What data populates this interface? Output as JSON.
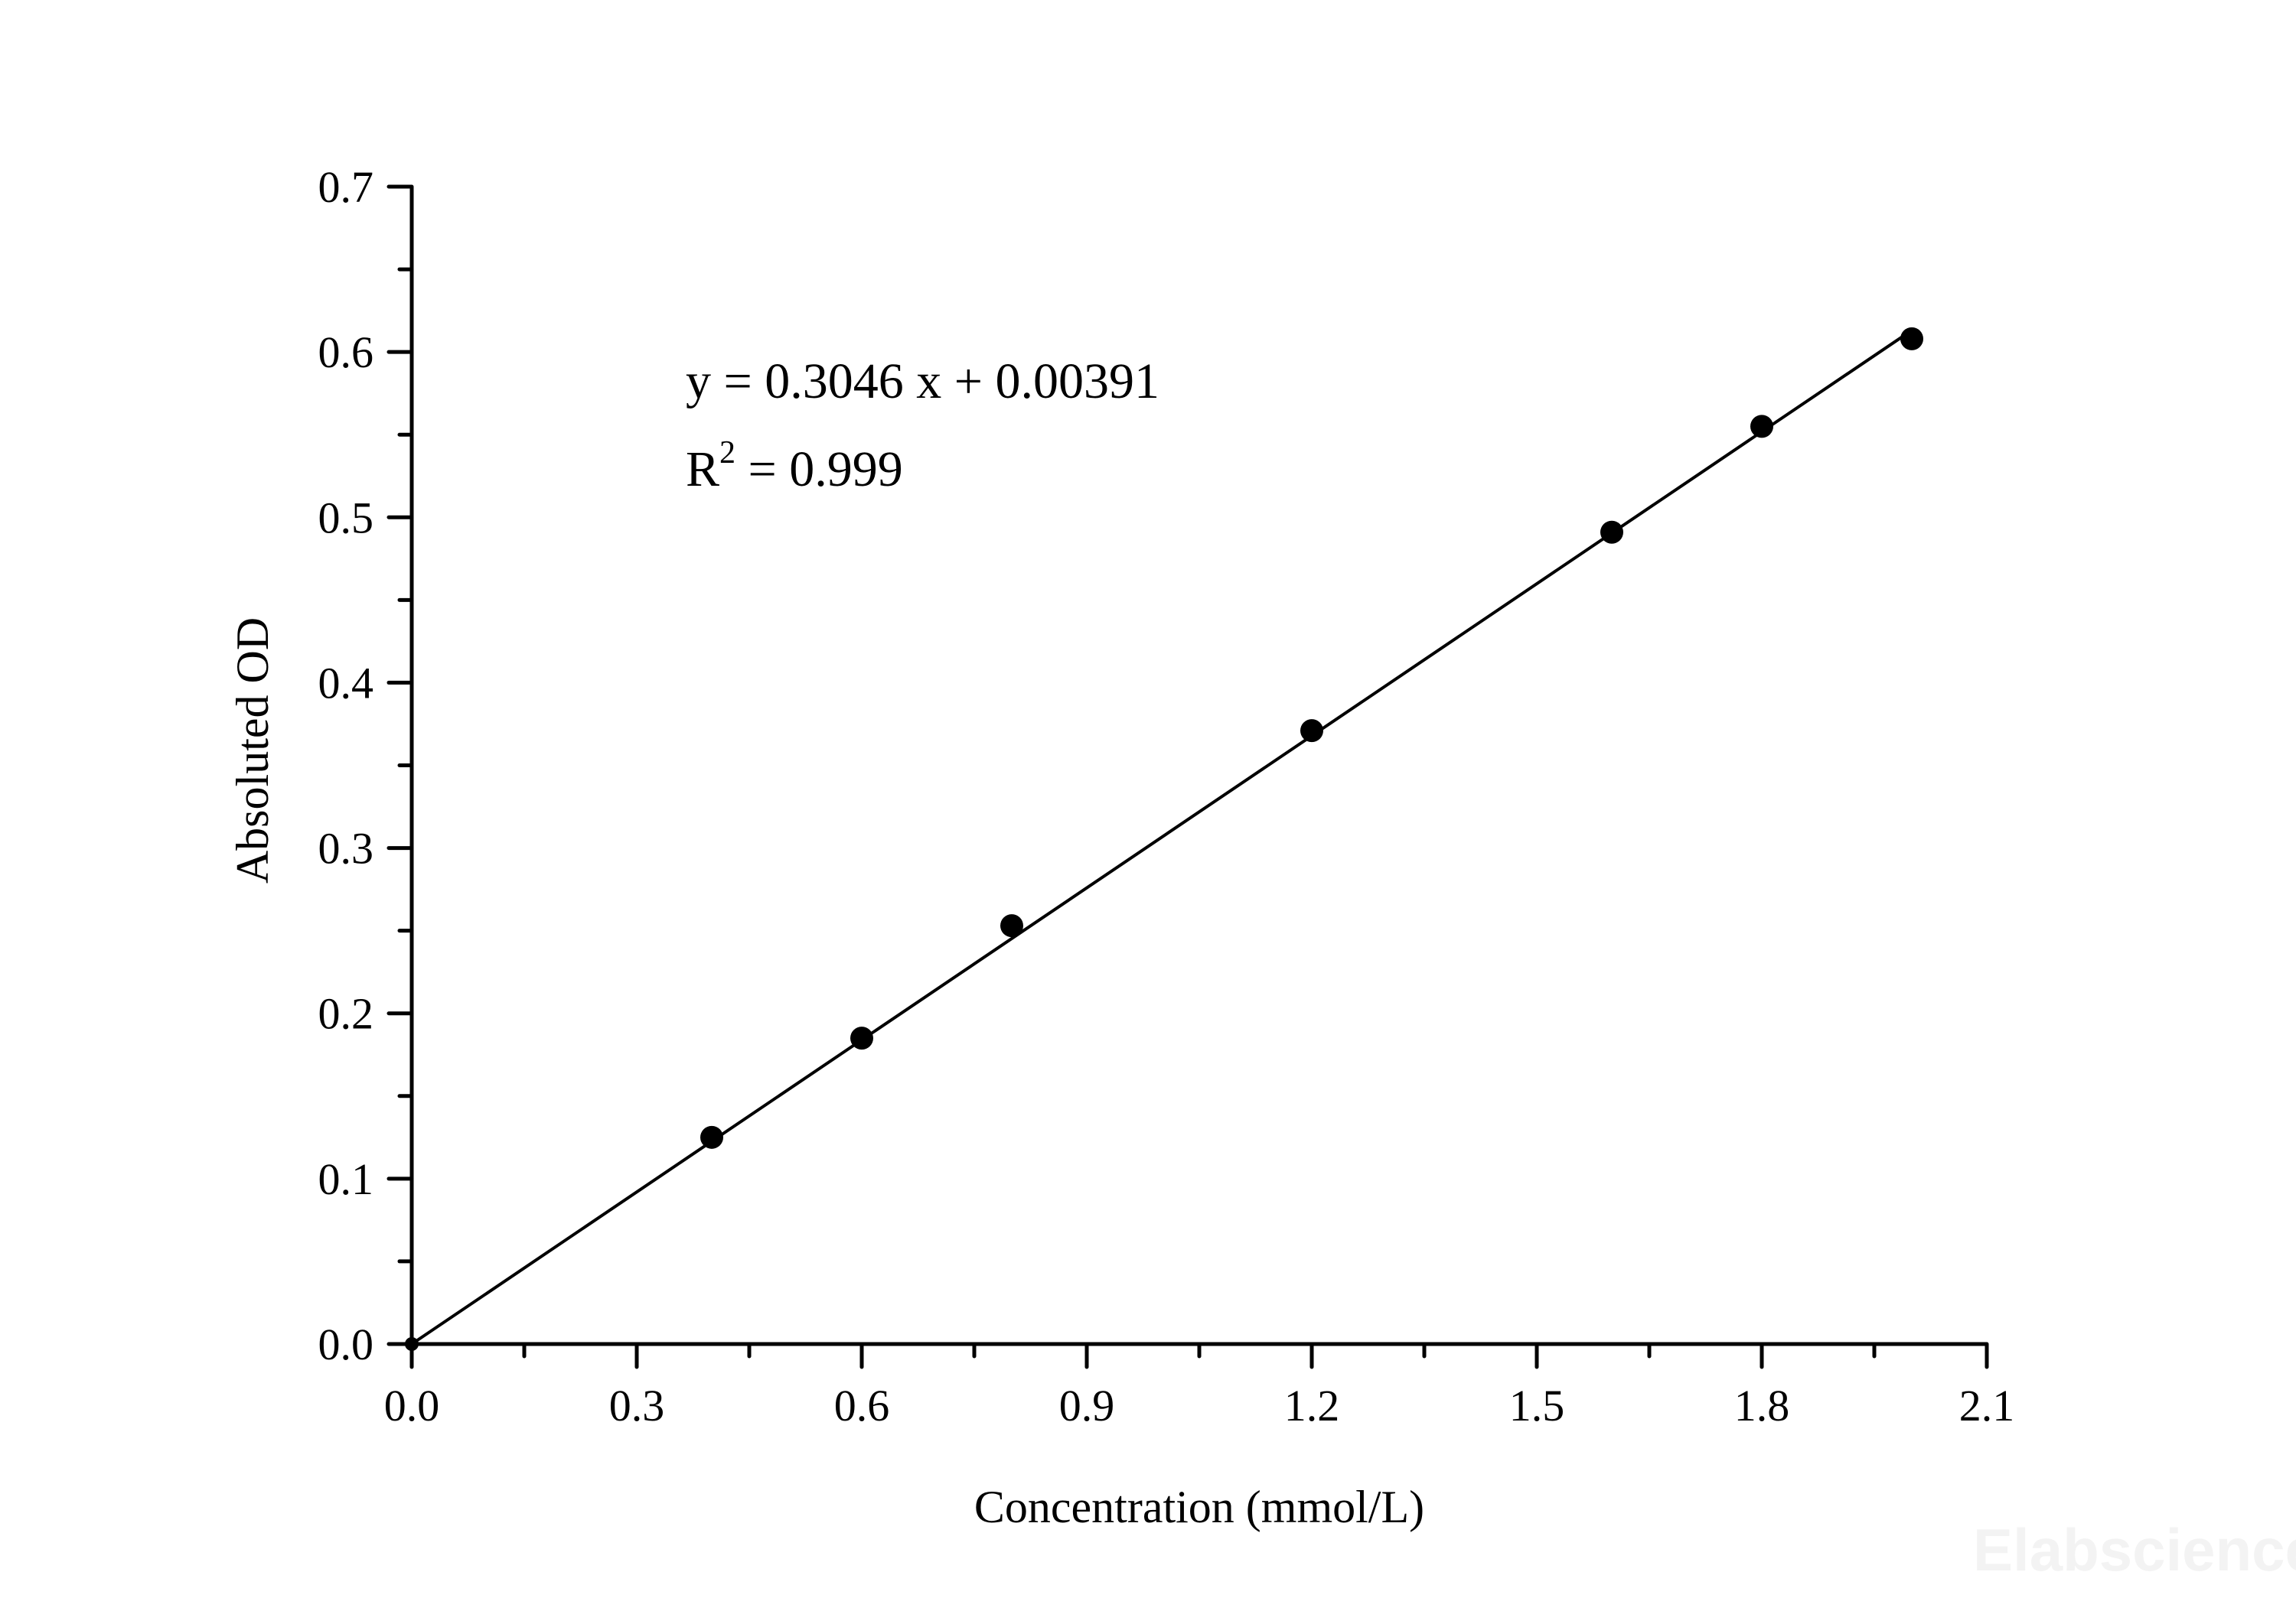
{
  "chart_data": {
    "type": "scatter",
    "title": "",
    "xlabel": "Concentration (mmol/L)",
    "ylabel": "Absoluted OD",
    "xlim": [
      0,
      2.1
    ],
    "ylim": [
      0,
      0.7
    ],
    "xticks": [
      "0.0",
      "0.3",
      "0.6",
      "0.9",
      "1.2",
      "1.5",
      "1.8",
      "2.1"
    ],
    "yticks": [
      "0.0",
      "0.1",
      "0.2",
      "0.3",
      "0.4",
      "0.5",
      "0.6",
      "0.7"
    ],
    "grid": false,
    "series": [
      {
        "x": [
          0,
          0.4,
          0.6,
          0.8,
          1.2,
          1.6,
          1.8,
          2.0
        ],
        "y": [
          0,
          0.125,
          0.185,
          0.253,
          0.371,
          0.491,
          0.555,
          0.608
        ],
        "color": "#000000"
      }
    ],
    "fit": {
      "slope": 0.3046,
      "intercept": 0.00391,
      "x_range": [
        0,
        2.0
      ]
    },
    "annotations": {
      "equation": "y = 0.3046 x + 0.00391",
      "r2_prefix": "R",
      "r2_sup": "2",
      "r2_value": " = 0.999"
    }
  },
  "watermark": "Elabscience"
}
